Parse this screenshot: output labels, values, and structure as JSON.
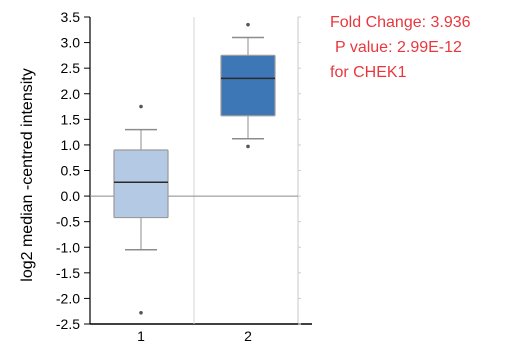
{
  "chart_data": {
    "type": "box",
    "title": "",
    "xlabel": "",
    "ylabel": "log2 median -centred intensity",
    "ylim": [
      -2.5,
      3.5
    ],
    "yticks": [
      3.5,
      3.0,
      2.5,
      2.0,
      1.5,
      1.0,
      0.5,
      0.0,
      -0.5,
      -1.0,
      -1.5,
      -2.0,
      -2.5
    ],
    "ytick_labels": [
      "3.5",
      "3.0",
      "2.5",
      "2.0",
      "1.5",
      "1.0",
      "0.5",
      "0.0",
      "-0.5",
      "-1.0",
      "-1.5",
      "-2.0",
      "-2.5"
    ],
    "categories": [
      "1",
      "2"
    ],
    "boxes": [
      {
        "category": "1",
        "whisker_low": -1.05,
        "q1": -0.42,
        "median": 0.27,
        "q3": 0.9,
        "whisker_high": 1.3,
        "outliers": [
          1.75,
          -2.28
        ],
        "color": "#b3c9e4"
      },
      {
        "category": "2",
        "whisker_low": 1.12,
        "q1": 1.57,
        "median": 2.3,
        "q3": 2.75,
        "whisker_high": 3.1,
        "outliers": [
          3.35,
          0.97
        ],
        "color": "#3d77b5"
      }
    ],
    "reference_line": 0,
    "grid": false,
    "annotations": {
      "fold_change": "Fold Change: 3.936",
      "p_value": "P value: 2.99E-12",
      "gene": "for CHEK1",
      "color": "#e8383d"
    }
  }
}
